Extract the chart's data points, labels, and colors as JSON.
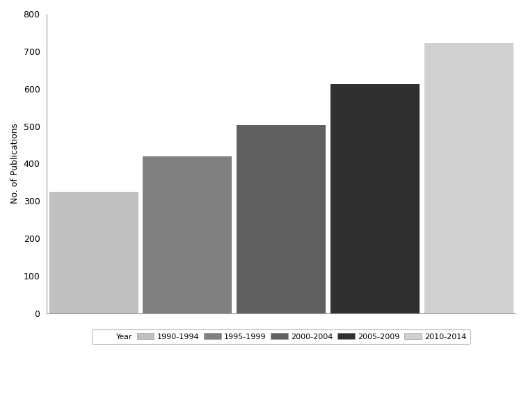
{
  "categories": [
    "1990-1994",
    "1995-1999",
    "2000-2004",
    "2005-2009",
    "2010-2014"
  ],
  "values": [
    325,
    420,
    503,
    613,
    722
  ],
  "bar_colors": [
    "#c0c0c0",
    "#808080",
    "#606060",
    "#303030",
    "#d0d0d0"
  ],
  "ylabel": "No. of Publications",
  "ylim": [
    0,
    800
  ],
  "yticks": [
    0,
    100,
    200,
    300,
    400,
    500,
    600,
    700,
    800
  ],
  "legend_label": "Year",
  "background_color": "#ffffff",
  "bar_edge_color": "#ffffff",
  "bar_width": 0.95
}
